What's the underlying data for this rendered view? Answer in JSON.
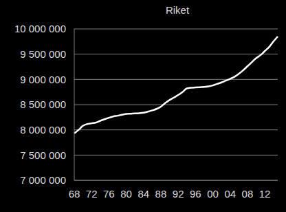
{
  "chart_data": {
    "type": "line",
    "title": "Riket",
    "categories": [
      "68",
      null,
      null,
      null,
      "72",
      null,
      null,
      null,
      "76",
      null,
      null,
      null,
      "80",
      null,
      null,
      null,
      "84",
      null,
      null,
      null,
      "88",
      null,
      null,
      null,
      "92",
      null,
      null,
      null,
      "96",
      null,
      null,
      null,
      "00",
      null,
      null,
      null,
      "04",
      null,
      null,
      null,
      "08",
      null,
      null,
      null,
      "12",
      null,
      null,
      null
    ],
    "values": [
      7930000,
      8000000,
      8080000,
      8115000,
      8130000,
      8145000,
      8180000,
      8210000,
      8240000,
      8265000,
      8280000,
      8300000,
      8315000,
      8320000,
      8325000,
      8330000,
      8340000,
      8360000,
      8385000,
      8415000,
      8460000,
      8530000,
      8590000,
      8640000,
      8690000,
      8750000,
      8820000,
      8835000,
      8840000,
      8845000,
      8850000,
      8860000,
      8880000,
      8910000,
      8940000,
      8975000,
      9010000,
      9050000,
      9110000,
      9180000,
      9260000,
      9340000,
      9420000,
      9480000,
      9560000,
      9640000,
      9750000,
      9850000
    ],
    "color": "#ffffff",
    "ylim": [
      7000000,
      10000000
    ],
    "yticks": [
      {
        "value": 7000000,
        "label": "7 000 000"
      },
      {
        "value": 7500000,
        "label": "7 500 000"
      },
      {
        "value": 8000000,
        "label": "8 000 000"
      },
      {
        "value": 8500000,
        "label": "8 500 000"
      },
      {
        "value": 9000000,
        "label": "9 000 000"
      },
      {
        "value": 9500000,
        "label": "9 500 000"
      },
      {
        "value": 10000000,
        "label": "10 000 000"
      }
    ],
    "grid": true
  }
}
